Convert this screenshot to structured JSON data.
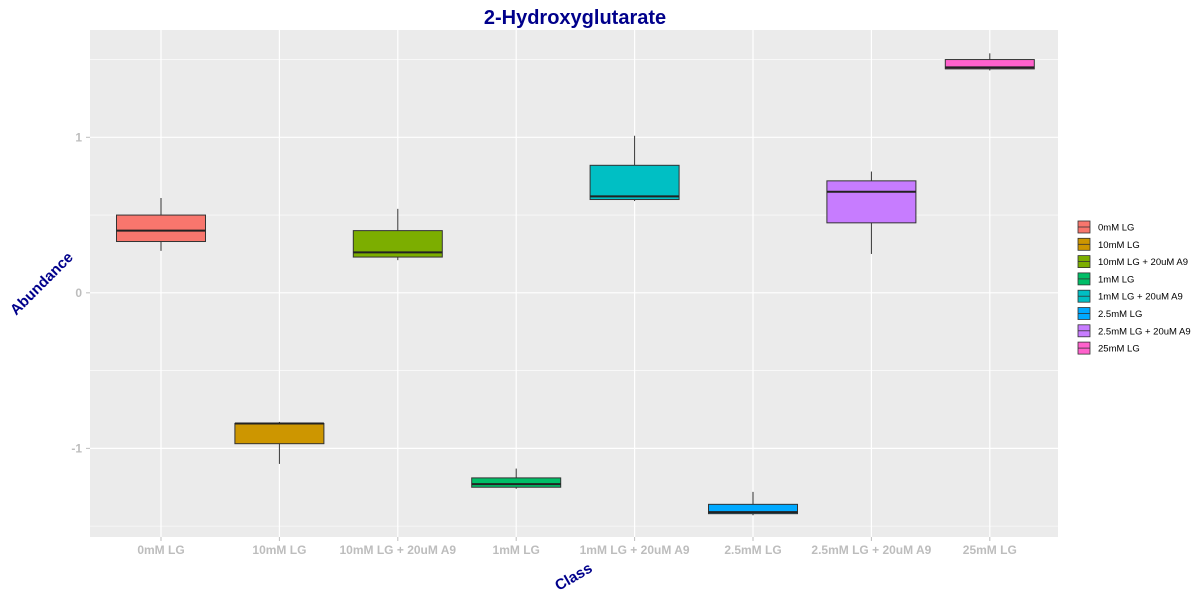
{
  "chart_data": {
    "type": "box",
    "title": "2-Hydroxyglutarate",
    "xlabel": "Class",
    "ylabel": "Abundance",
    "ylim": [
      -1.57,
      1.69
    ],
    "yticks": [
      -1,
      0,
      1
    ],
    "ytick_labels": [
      "-1",
      "0",
      "1"
    ],
    "grid": true,
    "legend_position": "right",
    "categories": [
      "0mM LG",
      "10mM LG",
      "10mM LG + 20uM A9",
      "1mM LG",
      "1mM LG + 20uM A9",
      "2.5mM LG",
      "2.5mM LG + 20uM A9",
      "25mM LG"
    ],
    "series": [
      {
        "name": "0mM LG",
        "color": "#F8766D",
        "min": 0.27,
        "q1": 0.33,
        "median": 0.4,
        "q3": 0.5,
        "max": 0.61
      },
      {
        "name": "10mM LG",
        "color": "#CD9600",
        "min": -1.1,
        "q1": -0.97,
        "median": -0.84,
        "q3": -0.84,
        "max": -0.83
      },
      {
        "name": "10mM LG + 20uM A9",
        "color": "#7CAE00",
        "min": 0.21,
        "q1": 0.23,
        "median": 0.26,
        "q3": 0.4,
        "max": 0.54
      },
      {
        "name": "1mM LG",
        "color": "#00BE67",
        "min": -1.26,
        "q1": -1.25,
        "median": -1.23,
        "q3": -1.19,
        "max": -1.13
      },
      {
        "name": "1mM LG + 20uM A9",
        "color": "#00BFC4",
        "min": 0.59,
        "q1": 0.6,
        "median": 0.62,
        "q3": 0.82,
        "max": 1.01
      },
      {
        "name": "2.5mM LG",
        "color": "#00A9FF",
        "min": -1.43,
        "q1": -1.42,
        "median": -1.41,
        "q3": -1.36,
        "max": -1.28
      },
      {
        "name": "2.5mM LG + 20uM A9",
        "color": "#C77CFF",
        "min": 0.25,
        "q1": 0.45,
        "median": 0.65,
        "q3": 0.72,
        "max": 0.78
      },
      {
        "name": "25mM LG",
        "color": "#FF61CC",
        "min": 1.43,
        "q1": 1.44,
        "median": 1.45,
        "q3": 1.5,
        "max": 1.54
      }
    ]
  }
}
